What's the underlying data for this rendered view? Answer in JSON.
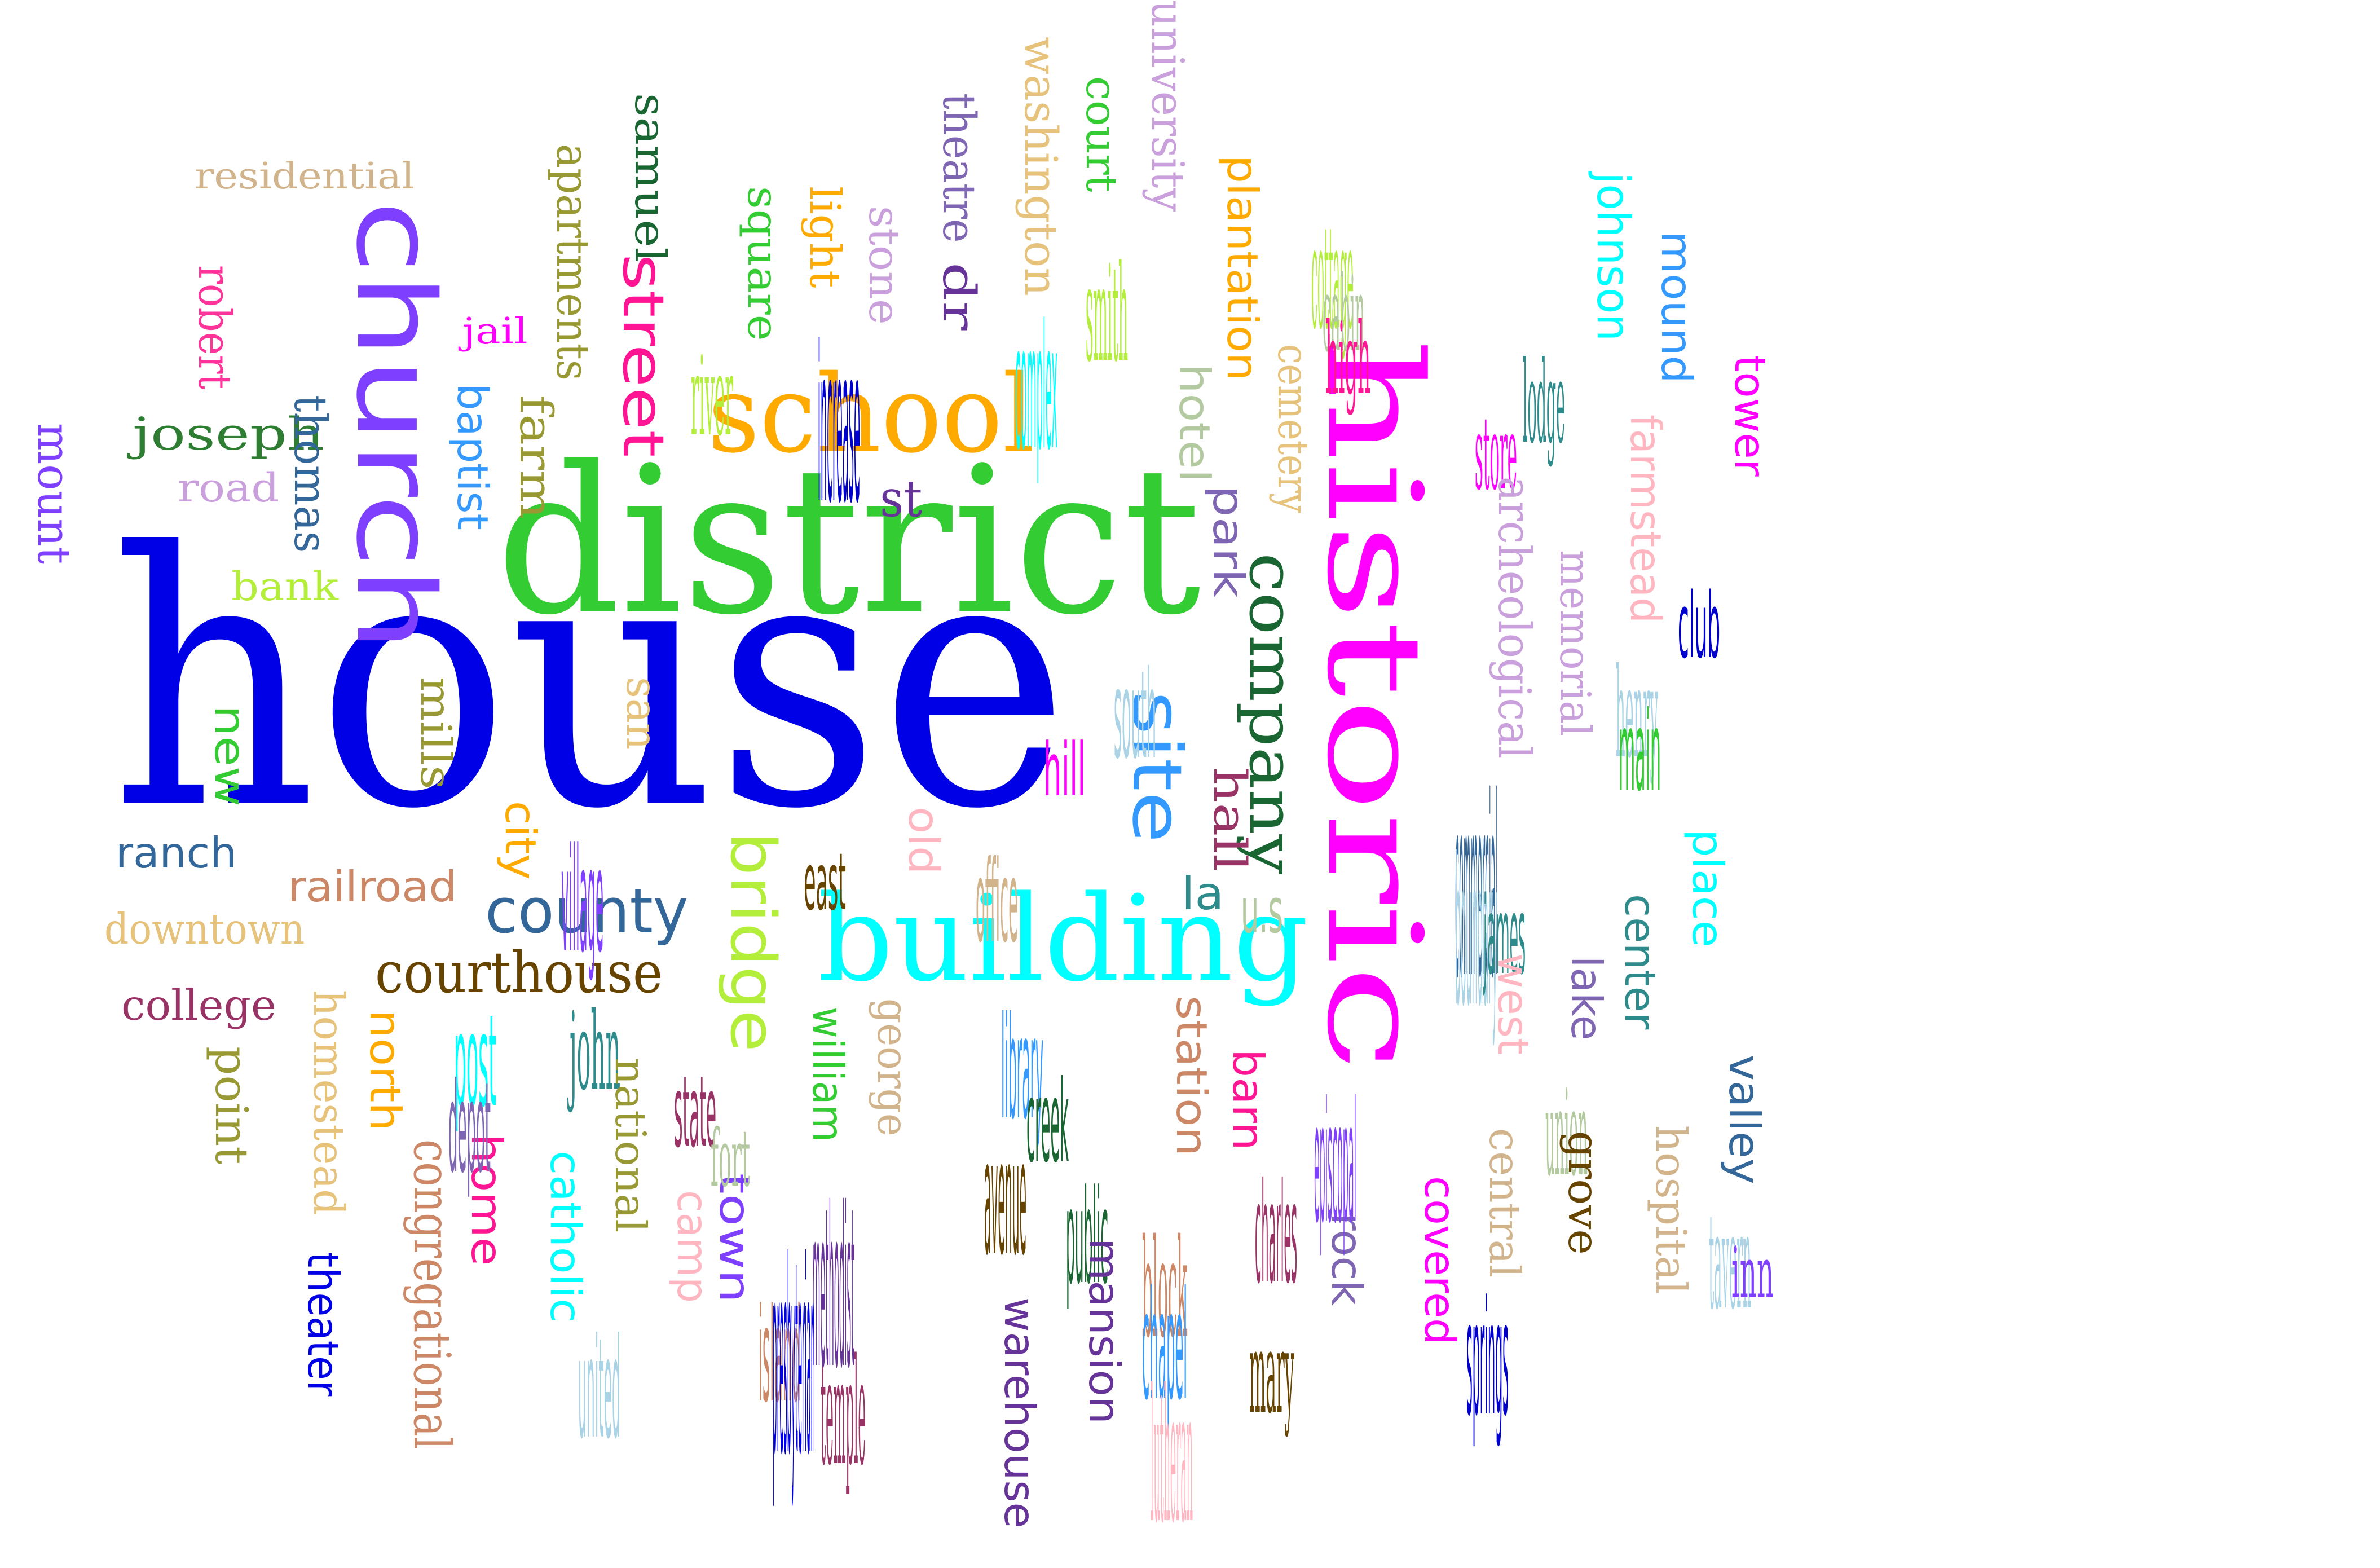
{
  "words": [
    {
      "text": "house",
      "color": "#0000e6"
    },
    {
      "text": "district",
      "color": "#33cc33"
    },
    {
      "text": "historic",
      "color": "#ff00ff"
    },
    {
      "text": "church",
      "color": "#7f3fff"
    },
    {
      "text": "building",
      "color": "#00ffff"
    },
    {
      "text": "school",
      "color": "#ffaa00"
    },
    {
      "text": "company",
      "color": "#1a6633"
    },
    {
      "text": "county",
      "color": "#336699"
    },
    {
      "text": "bridge",
      "color": "#b3ee3a"
    },
    {
      "text": "site",
      "color": "#3399ff"
    },
    {
      "text": "courthouse",
      "color": "#664400"
    },
    {
      "text": "street",
      "color": "#ff1493"
    },
    {
      "text": "residential",
      "color": "#d2b48c"
    },
    {
      "text": "robert",
      "color": "#ff3399"
    },
    {
      "text": "joseph",
      "color": "#2e7d32"
    },
    {
      "text": "road",
      "color": "#c9a0dc"
    },
    {
      "text": "thomas",
      "color": "#336699"
    },
    {
      "text": "mount",
      "color": "#7f3fff"
    },
    {
      "text": "bank",
      "color": "#b3ee3a"
    },
    {
      "text": "apartments",
      "color": "#999933"
    },
    {
      "text": "samuel",
      "color": "#1a6633"
    },
    {
      "text": "jail",
      "color": "#ff00ff"
    },
    {
      "text": "baptist",
      "color": "#3399ff"
    },
    {
      "text": "farm",
      "color": "#999933"
    },
    {
      "text": "mills",
      "color": "#999933"
    },
    {
      "text": "new",
      "color": "#33cc33"
    },
    {
      "text": "ranch",
      "color": "#336699"
    },
    {
      "text": "railroad",
      "color": "#cc8866"
    },
    {
      "text": "downtown",
      "color": "#e6c27a"
    },
    {
      "text": "college",
      "color": "#993366"
    },
    {
      "text": "point",
      "color": "#999933"
    },
    {
      "text": "homestead",
      "color": "#e6c27a"
    },
    {
      "text": "north",
      "color": "#ffaa00"
    },
    {
      "text": "congregational",
      "color": "#cc8866"
    },
    {
      "text": "theater",
      "color": "#0000e6"
    },
    {
      "text": "home",
      "color": "#ff1493"
    },
    {
      "text": "catholic",
      "color": "#00ffff"
    },
    {
      "text": "city",
      "color": "#ffaa00"
    },
    {
      "text": "village",
      "color": "#7f3fff"
    },
    {
      "text": "post",
      "color": "#00ffff"
    },
    {
      "text": "john",
      "color": "#2e8b8b"
    },
    {
      "text": "depot",
      "color": "#7f66b3"
    },
    {
      "text": "national",
      "color": "#999933"
    },
    {
      "text": "united",
      "color": "#aad4e6"
    },
    {
      "text": "camp",
      "color": "#ffb6c1"
    },
    {
      "text": "town",
      "color": "#7f3fff"
    },
    {
      "text": "state",
      "color": "#993366"
    },
    {
      "text": "fort",
      "color": "#b3c9a0"
    },
    {
      "text": "island",
      "color": "#cc8866"
    },
    {
      "text": "temple",
      "color": "#993366"
    },
    {
      "text": "san",
      "color": "#e6c27a"
    },
    {
      "text": "square",
      "color": "#33cc33"
    },
    {
      "text": "light",
      "color": "#ffaa00"
    },
    {
      "text": "stone",
      "color": "#c9a0dc"
    },
    {
      "text": "river",
      "color": "#b3ee3a"
    },
    {
      "text": "increase",
      "color": "#0000cc"
    },
    {
      "text": "theatre",
      "color": "#7f66b3"
    },
    {
      "text": "dr",
      "color": "#663399"
    },
    {
      "text": "st",
      "color": "#663399"
    },
    {
      "text": "washington",
      "color": "#e6c27a"
    },
    {
      "text": "court",
      "color": "#33cc33"
    },
    {
      "text": "university",
      "color": "#c9a0dc"
    },
    {
      "text": "smith",
      "color": "#b3ee3a"
    },
    {
      "text": "complex",
      "color": "#00ffff"
    },
    {
      "text": "plantation",
      "color": "#ffaa00"
    },
    {
      "text": "hotel",
      "color": "#b3c9a0"
    },
    {
      "text": "cemetery",
      "color": "#e6c27a"
    },
    {
      "text": "park",
      "color": "#7f66b3"
    },
    {
      "text": "south",
      "color": "#aad4e6"
    },
    {
      "text": "hill",
      "color": "#ff00ff"
    },
    {
      "text": "hall",
      "color": "#993366"
    },
    {
      "text": "old",
      "color": "#ffb6c1"
    },
    {
      "text": "east",
      "color": "#664400"
    },
    {
      "text": "office",
      "color": "#d2b48c"
    },
    {
      "text": "la",
      "color": "#2e8b8b"
    },
    {
      "text": "u.s",
      "color": "#b3c9a0"
    },
    {
      "text": "library",
      "color": "#3399ff"
    },
    {
      "text": "george",
      "color": "#d2b48c"
    },
    {
      "text": "william",
      "color": "#33cc33"
    },
    {
      "text": "creek",
      "color": "#1a6633"
    },
    {
      "text": "avenue",
      "color": "#664400"
    },
    {
      "text": "station",
      "color": "#cc8866"
    },
    {
      "text": "barn",
      "color": "#ff1493"
    },
    {
      "text": "methodist",
      "color": "#663399"
    },
    {
      "text": "public",
      "color": "#1a6633"
    },
    {
      "text": "presbyterian",
      "color": "#0000e6"
    },
    {
      "text": "block",
      "color": "#cc8866"
    },
    {
      "text": "chapel",
      "color": "#3399ff"
    },
    {
      "text": "warehouse",
      "color": "#663399"
    },
    {
      "text": "mansion",
      "color": "#663399"
    },
    {
      "text": "lutheran",
      "color": "#ffb6c1"
    },
    {
      "text": "charles",
      "color": "#993366"
    },
    {
      "text": "mary",
      "color": "#664400"
    },
    {
      "text": "rock",
      "color": "#7f66b3"
    },
    {
      "text": "covered",
      "color": "#ff00ff"
    },
    {
      "text": "episcopal",
      "color": "#7f3fff"
    },
    {
      "text": "cottage",
      "color": "#b3ee3a"
    },
    {
      "text": "cabin",
      "color": "#b3c9a0"
    },
    {
      "text": "high",
      "color": "#ff1493"
    },
    {
      "text": "store",
      "color": "#ff00ff"
    },
    {
      "text": "lodge",
      "color": "#2e8b8b"
    },
    {
      "text": "johnson",
      "color": "#00ffff"
    },
    {
      "text": "mound",
      "color": "#3399ff"
    },
    {
      "text": "tower",
      "color": "#ff00ff"
    },
    {
      "text": "farmstead",
      "color": "#ffb6c1"
    },
    {
      "text": "archeological",
      "color": "#c9a0dc"
    },
    {
      "text": "memorial",
      "color": "#c9a0dc"
    },
    {
      "text": "club",
      "color": "#0000cc"
    },
    {
      "text": "henry",
      "color": "#aad4e6"
    },
    {
      "text": "main",
      "color": "#33cc33"
    },
    {
      "text": "commercial",
      "color": "#336699"
    },
    {
      "text": "boundary",
      "color": "#aad4e6"
    },
    {
      "text": "place",
      "color": "#00ffff"
    },
    {
      "text": "james",
      "color": "#2e8b8b"
    },
    {
      "text": "center",
      "color": "#2e8b8b"
    },
    {
      "text": "west",
      "color": "#ffb6c1"
    },
    {
      "text": "lake",
      "color": "#7f66b3"
    },
    {
      "text": "union",
      "color": "#b3c9a0"
    },
    {
      "text": "valley",
      "color": "#336699"
    },
    {
      "text": "central",
      "color": "#d2b48c"
    },
    {
      "text": "grove",
      "color": "#664400"
    },
    {
      "text": "hospital",
      "color": "#d2b48c"
    },
    {
      "text": "tavern",
      "color": "#aad4e6"
    },
    {
      "text": "inn",
      "color": "#7f3fff"
    },
    {
      "text": "springs",
      "color": "#0000cc"
    }
  ]
}
